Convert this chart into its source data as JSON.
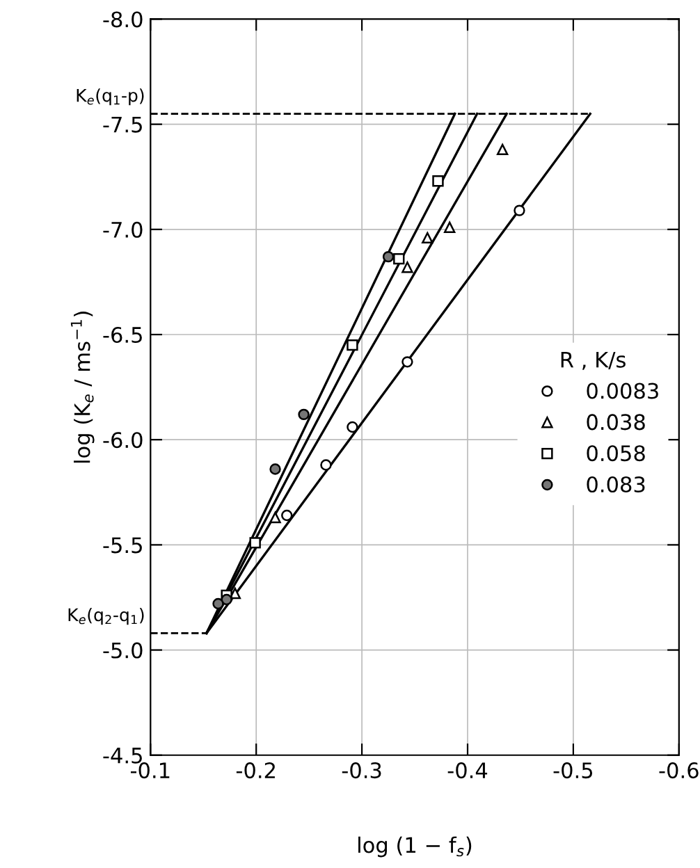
{
  "chart_data": {
    "type": "scatter",
    "xlabel": "log (1 − f$_{s}$)",
    "ylabel": "log (K$_{e}$ / ms$^{−1}$)",
    "xlim": [
      -0.1,
      -0.6
    ],
    "xticks": [
      -0.1,
      -0.2,
      -0.3,
      -0.4,
      -0.5,
      -0.6
    ],
    "ylim": [
      -4.5,
      -8.0
    ],
    "yticks": [
      -4.5,
      {
        "value": -5,
        "label": "-5.0"
      },
      -5.5,
      {
        "value": -6,
        "label": "-6.0"
      },
      -6.5,
      {
        "value": -7,
        "label": "-7.0"
      },
      -7.5,
      {
        "value": -8,
        "label": "-8.0"
      }
    ],
    "grid": true,
    "legend": "right",
    "legend_title": "R , K/s",
    "series": [
      {
        "name": "0.0083",
        "marker": "circle",
        "color": "#ffffff",
        "x": [
          -0.449,
          -0.343,
          -0.291,
          -0.266,
          -0.229
        ],
        "values": [
          -7.09,
          -6.37,
          -6.06,
          -5.88,
          -5.64
        ]
      },
      {
        "name": "0.038",
        "marker": "triangle",
        "color": "#ffffff",
        "x": [
          -0.433,
          -0.383,
          -0.362,
          -0.343,
          -0.218,
          -0.18
        ],
        "values": [
          -7.38,
          -7.01,
          -6.96,
          -6.82,
          -5.63,
          -5.27
        ]
      },
      {
        "name": "0.058",
        "marker": "square",
        "color": "#ffffff",
        "x": [
          -0.372,
          -0.335,
          -0.291,
          -0.199,
          -0.172
        ],
        "values": [
          -7.23,
          -6.86,
          -6.45,
          -5.51,
          -5.26
        ]
      },
      {
        "name": "0.083",
        "marker": "circle",
        "color": "#777777",
        "x": [
          -0.325,
          -0.245,
          -0.218,
          -0.172,
          -0.164
        ],
        "values": [
          -6.87,
          -6.12,
          -5.86,
          -5.24,
          -5.22
        ]
      },
      {
        "type": "line",
        "color": "#000000",
        "x": [
          -0.153,
          -0.516
        ],
        "values": [
          -5.08,
          -7.55
        ]
      },
      {
        "type": "line",
        "color": "#000000",
        "x": [
          -0.153,
          -0.437
        ],
        "values": [
          -5.08,
          -7.55
        ]
      },
      {
        "type": "line",
        "color": "#000000",
        "x": [
          -0.153,
          -0.409
        ],
        "values": [
          -5.08,
          -7.55
        ]
      },
      {
        "type": "line",
        "color": "#000000",
        "x": [
          -0.153,
          -0.388
        ],
        "values": [
          -5.08,
          -7.55
        ]
      }
    ],
    "ref_lines": [
      {
        "axis": "y",
        "value": -7.55,
        "label": "K$_{e}$(q$_{1}$-p)",
        "line_style": "dashed",
        "color": "#000000"
      },
      {
        "axis": "y",
        "value": -5.08,
        "label": "K$_{e}$(q$_{2}$-q$_{1}$)",
        "line_style": "dashed",
        "color": "#000000"
      }
    ]
  }
}
